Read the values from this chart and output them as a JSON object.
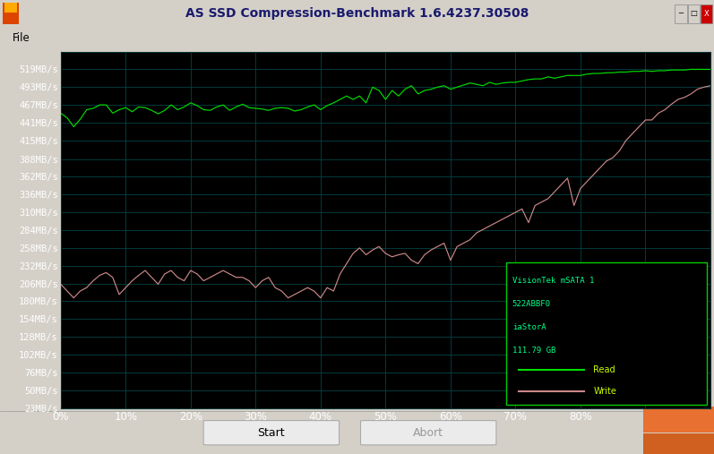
{
  "title": "AS SSD Compression-Benchmark 1.6.4237.30508",
  "window_bg": "#d4d0c8",
  "titlebar_bg": "#4a90d9",
  "menubar_bg": "#f0eeeb",
  "plot_bg": "#000000",
  "grid_color": "#004444",
  "read_color": "#00dd00",
  "write_color": "#cc8888",
  "y_labels": [
    "519MB/s",
    "493MB/s",
    "467MB/s",
    "441MB/s",
    "415MB/s",
    "388MB/s",
    "362MB/s",
    "336MB/s",
    "310MB/s",
    "284MB/s",
    "258MB/s",
    "232MB/s",
    "206MB/s",
    "180MB/s",
    "154MB/s",
    "128MB/s",
    "102MB/s",
    "76MB/s",
    "50MB/s",
    "23MB/s"
  ],
  "y_values": [
    519,
    493,
    467,
    441,
    415,
    388,
    362,
    336,
    310,
    284,
    258,
    232,
    206,
    180,
    154,
    128,
    102,
    76,
    50,
    23
  ],
  "x_labels": [
    "0%",
    "10%",
    "20%",
    "30%",
    "40%",
    "50%",
    "60%",
    "70%",
    "80%",
    ""
  ],
  "x_ticks": [
    0,
    10,
    20,
    30,
    40,
    50,
    60,
    70,
    80,
    90
  ],
  "legend_text": [
    "VisionTek mSATA 1",
    "522ABBF0",
    "iaStorA",
    "111.79 GB"
  ],
  "legend_read": "Read",
  "legend_write": "Write",
  "read_x": [
    0,
    1,
    2,
    3,
    4,
    5,
    6,
    7,
    8,
    9,
    10,
    11,
    12,
    13,
    14,
    15,
    16,
    17,
    18,
    19,
    20,
    21,
    22,
    23,
    24,
    25,
    26,
    27,
    28,
    29,
    30,
    31,
    32,
    33,
    34,
    35,
    36,
    37,
    38,
    39,
    40,
    41,
    42,
    43,
    44,
    45,
    46,
    47,
    48,
    49,
    50,
    51,
    52,
    53,
    54,
    55,
    56,
    57,
    58,
    59,
    60,
    61,
    62,
    63,
    64,
    65,
    66,
    67,
    68,
    69,
    70,
    71,
    72,
    73,
    74,
    75,
    76,
    77,
    78,
    79,
    80,
    81,
    82,
    83,
    84,
    85,
    86,
    87,
    88,
    89,
    90,
    91,
    92,
    93,
    94,
    95,
    96,
    97,
    98,
    99,
    100
  ],
  "read_y": [
    455,
    448,
    435,
    446,
    460,
    462,
    467,
    467,
    455,
    460,
    463,
    457,
    464,
    463,
    459,
    454,
    459,
    467,
    460,
    464,
    470,
    466,
    460,
    459,
    464,
    467,
    459,
    464,
    468,
    463,
    462,
    461,
    459,
    462,
    463,
    462,
    458,
    460,
    464,
    467,
    460,
    466,
    470,
    475,
    480,
    475,
    480,
    470,
    493,
    488,
    475,
    488,
    480,
    490,
    495,
    483,
    488,
    490,
    493,
    495,
    490,
    493,
    496,
    499,
    497,
    495,
    500,
    497,
    499,
    500,
    500,
    502,
    504,
    505,
    505,
    508,
    506,
    508,
    510,
    510,
    510,
    512,
    513,
    513,
    514,
    514,
    515,
    515,
    516,
    516,
    517,
    516,
    517,
    517,
    518,
    518,
    518,
    519,
    519,
    519,
    519
  ],
  "write_y": [
    205,
    195,
    185,
    195,
    200,
    210,
    218,
    222,
    215,
    190,
    200,
    210,
    218,
    225,
    215,
    205,
    220,
    225,
    215,
    210,
    225,
    220,
    210,
    215,
    220,
    225,
    220,
    215,
    215,
    210,
    200,
    210,
    215,
    200,
    195,
    185,
    190,
    195,
    200,
    195,
    185,
    200,
    195,
    220,
    235,
    250,
    258,
    248,
    255,
    260,
    250,
    245,
    248,
    250,
    240,
    235,
    248,
    255,
    260,
    265,
    240,
    260,
    265,
    270,
    280,
    285,
    290,
    295,
    300,
    305,
    310,
    315,
    295,
    320,
    325,
    330,
    340,
    350,
    360,
    320,
    345,
    355,
    365,
    375,
    385,
    390,
    400,
    415,
    425,
    435,
    445,
    445,
    455,
    460,
    468,
    475,
    478,
    483,
    490,
    493,
    495
  ]
}
